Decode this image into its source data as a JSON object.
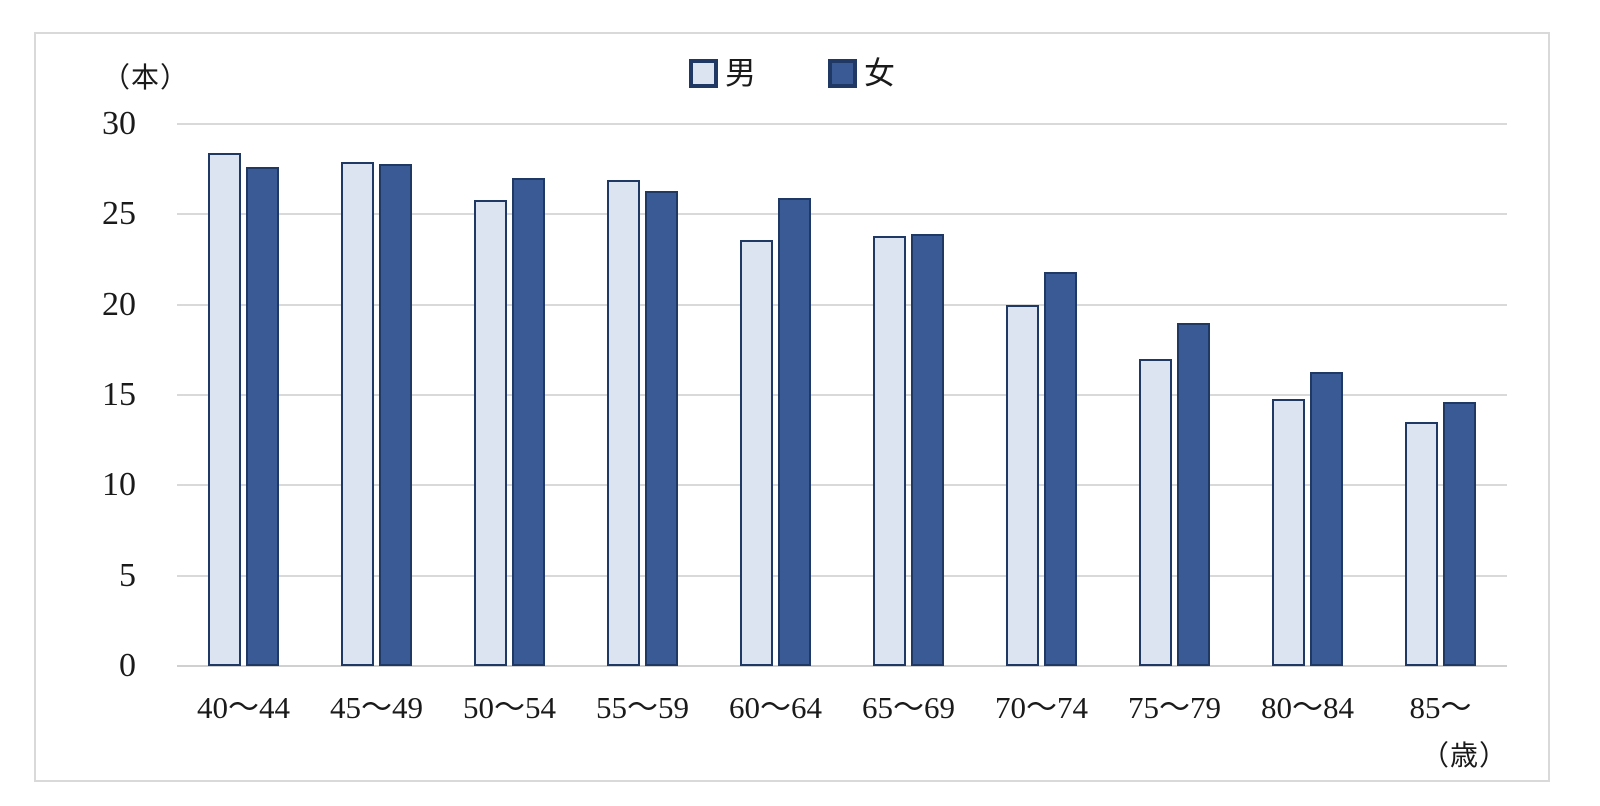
{
  "labels": {
    "y_unit": "（本）",
    "x_unit": "（歳）"
  },
  "legend": {
    "male_label": "男",
    "female_label": "女"
  },
  "colors": {
    "male_fill": "#dce3f1",
    "female_fill": "#3a5a96",
    "bar_border": "#1f3864",
    "gridline": "#d9d9d9",
    "frame_border": "#d9d9d9"
  },
  "chart_data": {
    "type": "bar",
    "title": "",
    "xlabel": "（歳）",
    "ylabel": "（本）",
    "categories": [
      "40～44",
      "45～49",
      "50～54",
      "55～59",
      "60～64",
      "65～69",
      "70～74",
      "75～79",
      "80～84",
      "85～"
    ],
    "series": [
      {
        "name": "男",
        "color": "#dce3f1",
        "values": [
          28.4,
          27.9,
          25.8,
          26.9,
          23.6,
          23.8,
          20.0,
          17.0,
          14.8,
          13.5
        ]
      },
      {
        "name": "女",
        "color": "#3a5a96",
        "values": [
          27.6,
          27.8,
          27.0,
          26.3,
          25.9,
          23.9,
          21.8,
          19.0,
          16.3,
          14.6
        ]
      }
    ],
    "ylim": [
      0,
      30
    ],
    "yticks": [
      0,
      5,
      10,
      15,
      20,
      25,
      30
    ],
    "grid": true,
    "legend_position": "top-center"
  }
}
